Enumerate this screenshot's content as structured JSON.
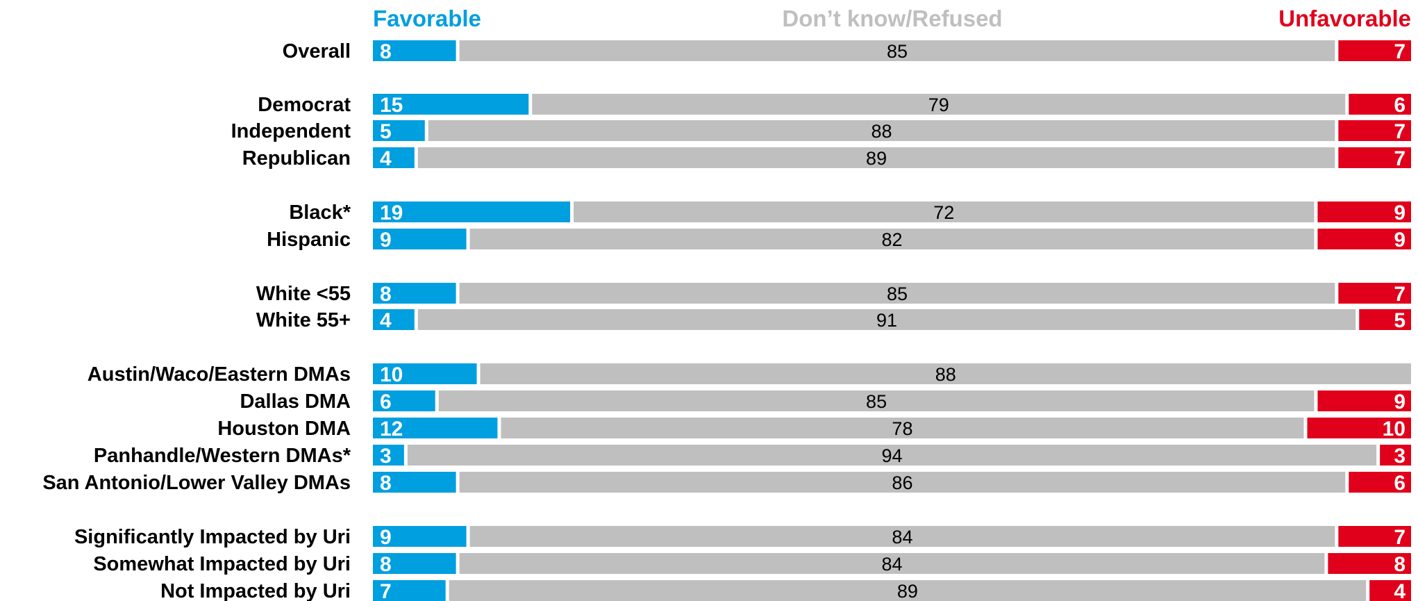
{
  "chart_data": {
    "type": "bar",
    "orientation": "horizontal",
    "stacked": true,
    "legend_placement": "top",
    "grid": false,
    "xlim": [
      0,
      100
    ],
    "series": [
      {
        "name": "Favorable",
        "color": "#009fdf",
        "values": [
          8,
          15,
          5,
          4,
          19,
          9,
          8,
          4,
          10,
          6,
          12,
          3,
          8,
          9,
          8,
          7
        ]
      },
      {
        "name": "Don’t know/Refused",
        "color": "#bfbfbf",
        "values": [
          85,
          79,
          88,
          89,
          72,
          82,
          85,
          91,
          88,
          85,
          78,
          94,
          86,
          84,
          84,
          89
        ]
      },
      {
        "name": "Unfavorable",
        "color": "#e0001b",
        "values": [
          7,
          6,
          7,
          7,
          9,
          9,
          7,
          5,
          null,
          9,
          10,
          3,
          6,
          7,
          8,
          4
        ]
      }
    ],
    "categories": [
      "Overall",
      "Democrat",
      "Independent",
      "Republican",
      "Black*",
      "Hispanic",
      "White <55",
      "White 55+",
      "Austin/Waco/Eastern DMAs",
      "Dallas DMA",
      "Houston DMA",
      "Panhandle/Western DMAs*",
      "San Antonio/Lower Valley DMAs",
      "Significantly Impacted by Uri",
      "Somewhat Impacted by Uri",
      "Not Impacted by Uri"
    ],
    "groups": [
      [
        0
      ],
      [
        1,
        2,
        3
      ],
      [
        4,
        5
      ],
      [
        6,
        7
      ],
      [
        8,
        9,
        10,
        11,
        12
      ],
      [
        13,
        14,
        15
      ]
    ]
  }
}
